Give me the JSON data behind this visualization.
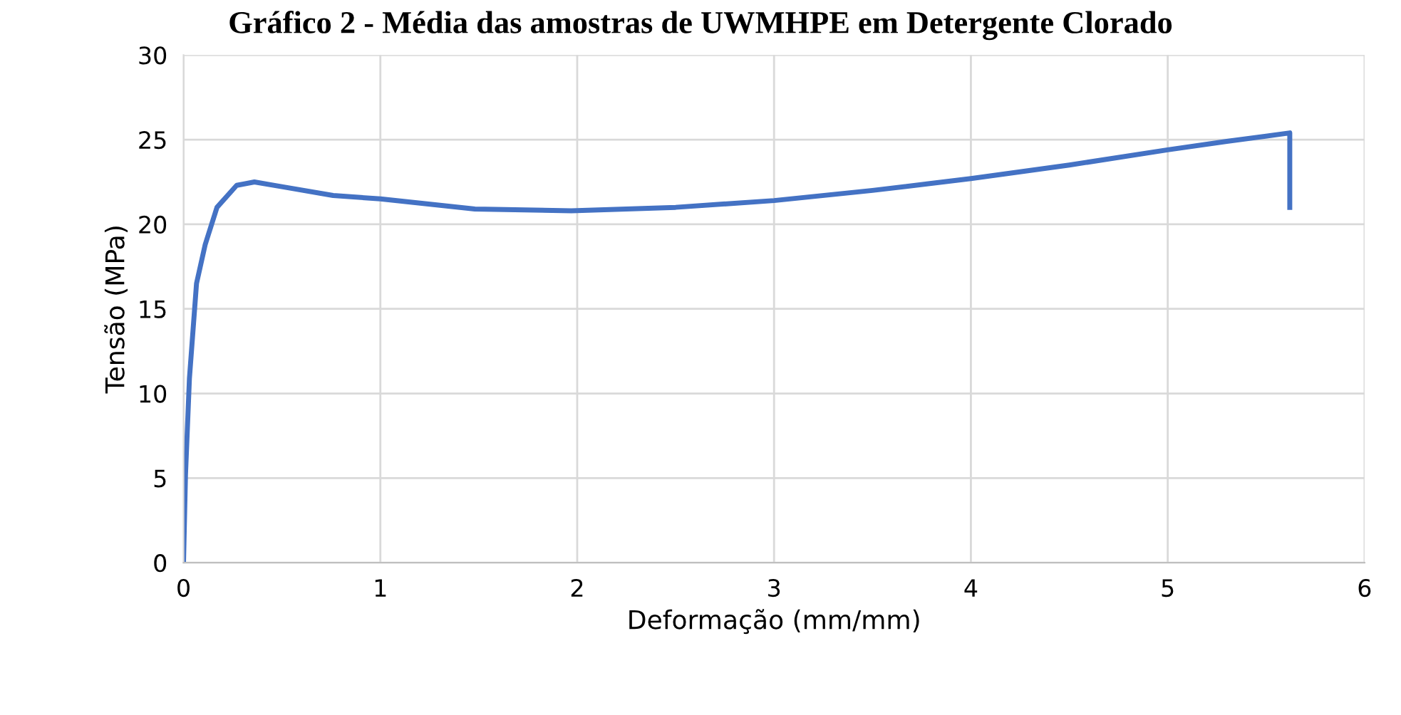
{
  "chart_data": {
    "type": "line",
    "title": "Gráfico 2 - Média das amostras de UWMHPE em Detergente Clorado",
    "xlabel": "Deformação (mm/mm)",
    "ylabel": "Tensão (MPa)",
    "series": [
      {
        "color": "#4472c4",
        "x": [
          0,
          0.01,
          0.03,
          0.066,
          0.11,
          0.17,
          0.27,
          0.36,
          0.51,
          0.76,
          1.0,
          1.48,
          1.97,
          2.5,
          3.0,
          3.5,
          4.0,
          4.5,
          5.0,
          5.3,
          5.62,
          5.62
        ],
        "values": [
          0,
          5.2,
          10.9,
          16.5,
          18.8,
          21,
          22.3,
          22.5,
          22.2,
          21.7,
          21.5,
          20.9,
          20.8,
          21.0,
          21.4,
          22.0,
          22.7,
          23.5,
          24.4,
          24.9,
          25.4,
          21.0
        ]
      }
    ],
    "xlim": [
      0,
      6
    ],
    "xticks": [
      0,
      1,
      2,
      3,
      4,
      5,
      6
    ],
    "ylim": [
      0,
      30
    ],
    "yticks": [
      0,
      5,
      10,
      15,
      20,
      25,
      30
    ],
    "grid": true,
    "legend": false,
    "marker": "none",
    "line_style": "solid"
  }
}
